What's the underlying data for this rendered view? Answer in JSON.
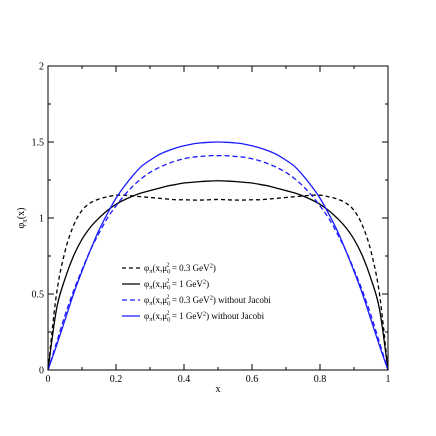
{
  "chart_data": {
    "type": "line",
    "xlabel": "x",
    "ylabel": "φπ(x)",
    "ylabel_main": "φ",
    "ylabel_sub": "π",
    "ylabel_tail": "(x)",
    "xlim": [
      0,
      1
    ],
    "ylim": [
      0,
      2
    ],
    "x_ticks": [
      "0",
      "0.2",
      "0.4",
      "0.6",
      "0.8",
      "1"
    ],
    "y_ticks": [
      "0",
      "0.5",
      "1",
      "1.5",
      "2"
    ],
    "grid": false,
    "legend_position": "lower-center",
    "x": [
      0.0,
      0.025,
      0.05,
      0.075,
      0.1,
      0.125,
      0.15,
      0.175,
      0.2,
      0.225,
      0.25,
      0.275,
      0.3,
      0.325,
      0.35,
      0.375,
      0.4,
      0.425,
      0.45,
      0.475,
      0.5,
      0.525,
      0.55,
      0.575,
      0.6,
      0.625,
      0.65,
      0.675,
      0.7,
      0.725,
      0.75,
      0.775,
      0.8,
      0.825,
      0.85,
      0.875,
      0.9,
      0.925,
      0.95,
      0.975,
      1.0
    ],
    "series": [
      {
        "name": "φπ(x, μ0² = 0.3 GeV²)",
        "color": "#000000",
        "dash": "4,3",
        "values": [
          0.0,
          0.5,
          0.78,
          0.95,
          1.05,
          1.1,
          1.125,
          1.14,
          1.15,
          1.15,
          1.145,
          1.14,
          1.135,
          1.13,
          1.125,
          1.12,
          1.12,
          1.118,
          1.118,
          1.12,
          1.122,
          1.12,
          1.118,
          1.118,
          1.12,
          1.12,
          1.125,
          1.13,
          1.135,
          1.14,
          1.145,
          1.15,
          1.15,
          1.14,
          1.125,
          1.1,
          1.05,
          0.95,
          0.78,
          0.5,
          0.0
        ]
      },
      {
        "name": "φπ(x, μ0² = 1 GeV²)",
        "color": "#000000",
        "dash": "",
        "values": [
          0.0,
          0.4,
          0.6,
          0.75,
          0.86,
          0.94,
          1.0,
          1.05,
          1.09,
          1.12,
          1.145,
          1.165,
          1.18,
          1.195,
          1.21,
          1.22,
          1.23,
          1.235,
          1.24,
          1.243,
          1.245,
          1.243,
          1.24,
          1.235,
          1.23,
          1.22,
          1.21,
          1.195,
          1.18,
          1.165,
          1.145,
          1.12,
          1.09,
          1.05,
          1.0,
          0.94,
          0.86,
          0.75,
          0.6,
          0.4,
          0.0
        ]
      },
      {
        "name": "φπ(x, μ0² = 0.3 GeV²) without Jacobi",
        "color": "#1a1aff",
        "dash": "5,3",
        "values": [
          0.0,
          0.18,
          0.36,
          0.52,
          0.66,
          0.79,
          0.9,
          1.0,
          1.08,
          1.15,
          1.21,
          1.26,
          1.3,
          1.33,
          1.355,
          1.375,
          1.39,
          1.4,
          1.405,
          1.41,
          1.41,
          1.41,
          1.405,
          1.4,
          1.39,
          1.375,
          1.355,
          1.33,
          1.3,
          1.26,
          1.21,
          1.15,
          1.08,
          1.0,
          0.9,
          0.79,
          0.66,
          0.52,
          0.36,
          0.18,
          0.0
        ]
      },
      {
        "name": "φπ(x, μ0² = 1 GeV²) without Jacobi",
        "color": "#1a1aff",
        "dash": "",
        "values": [
          0.0,
          0.16,
          0.33,
          0.5,
          0.65,
          0.79,
          0.92,
          1.03,
          1.13,
          1.21,
          1.28,
          1.34,
          1.38,
          1.415,
          1.44,
          1.46,
          1.475,
          1.487,
          1.494,
          1.498,
          1.5,
          1.498,
          1.494,
          1.487,
          1.475,
          1.46,
          1.44,
          1.415,
          1.38,
          1.34,
          1.28,
          1.21,
          1.13,
          1.03,
          0.92,
          0.79,
          0.65,
          0.5,
          0.33,
          0.16,
          0.0
        ]
      }
    ],
    "legend": [
      {
        "phi": "φ",
        "pi": "π",
        "args": "(x,μ",
        "sub0": "0",
        "sup2": "2",
        "eq": " = 0.3 GeV",
        "sup2b": "2",
        "tail": ")"
      },
      {
        "phi": "φ",
        "pi": "π",
        "args": "(x,μ",
        "sub0": "0",
        "sup2": "2",
        "eq": " = 1 GeV",
        "sup2b": "2",
        "tail": ")"
      },
      {
        "phi": "φ",
        "pi": "π",
        "args": "(x,μ",
        "sub0": "0",
        "sup2": "2",
        "eq": " = 0.3 GeV",
        "sup2b": "2",
        "tail": ") without Jacobi"
      },
      {
        "phi": "φ",
        "pi": "π",
        "args": "(x,μ",
        "sub0": "0",
        "sup2": "2",
        "eq": " = 1 GeV",
        "sup2b": "2",
        "tail": ") without Jacobi"
      }
    ]
  }
}
